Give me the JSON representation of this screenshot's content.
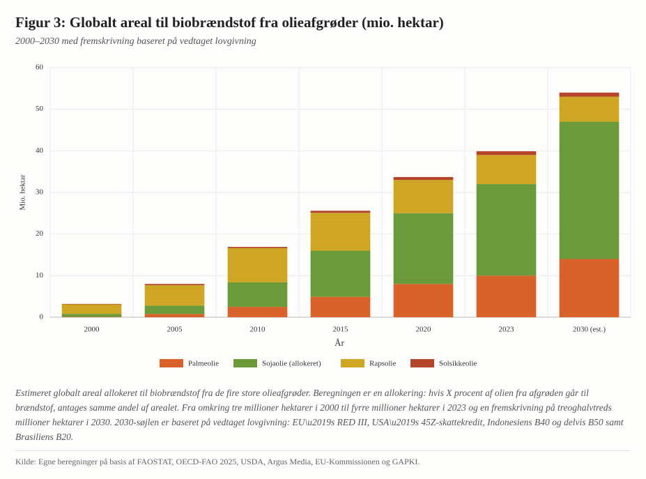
{
  "chart_data": {
    "type": "stacked_bar",
    "title": "Figur 3: Globalt areal til biobrændstof fra olieafgrøder (mio. hektar)",
    "subtitle": "2000–2030 med fremskrivning baseret på vedtaget lovgivning",
    "y_label": "Mio. hektar",
    "x_label": "År",
    "categories": [
      "2000",
      "2005",
      "2010",
      "2015",
      "2020",
      "2023",
      "2030 (est.)"
    ],
    "series": [
      {
        "name": "Palmeolie",
        "color": "#d9622b",
        "values": [
          0.1,
          0.8,
          2.5,
          4.9,
          8,
          10,
          14
        ]
      },
      {
        "name": "Sojaolie (allokeret)",
        "color": "#6a9a3a",
        "values": [
          0.7,
          2.0,
          5.9,
          11.1,
          17,
          22,
          33
        ]
      },
      {
        "name": "Rapsolie",
        "color": "#cfa623",
        "values": [
          2.3,
          4.9,
          8.2,
          9.1,
          8,
          7,
          6
        ]
      },
      {
        "name": "Solsikkeolie",
        "color": "#b5452a",
        "values": [
          0.1,
          0.3,
          0.3,
          0.5,
          0.7,
          0.9,
          1
        ]
      }
    ],
    "ylim": [
      0,
      60
    ],
    "yticks": [
      0,
      10,
      20,
      30,
      40,
      50,
      60
    ],
    "grid": true,
    "note": "Estimeret globalt areal allokeret til biobrændstof fra de fire store olieafgrøder. Beregningen er en allokering: hvis X procent af olien fra afgrøden går til brændstof, antages samme andel af arealet. Fra omkring tre millioner hektarer i 2000 til fyrre millioner hektarer i 2023 og en fremskrivning på treoghalvtreds millioner hektarer i 2030. 2030-søjlen er baseret på vedtaget lovgivning: EU\\u2019s RED III, USA\\u2019s 45Z-skattekredit, Indonesiens B40 og delvis B50 samt Brasiliens B20.",
    "source": "Kilde: Egne beregninger på basis af FAOSTAT, OECD-FAO 2025, USDA, Argus Media, EU-Kommissionen og GAPKI."
  }
}
